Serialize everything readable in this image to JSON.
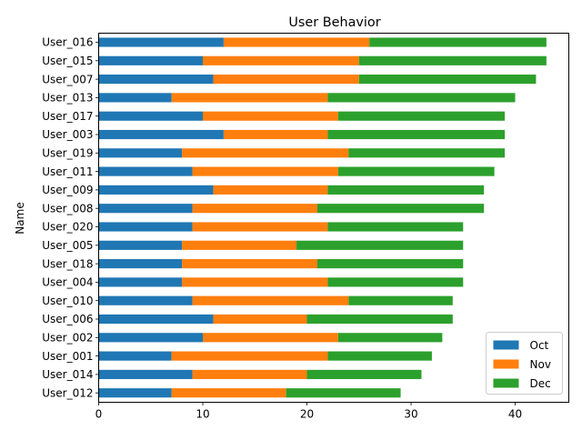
{
  "chart_data": {
    "type": "bar",
    "orientation": "horizontal",
    "stacked": true,
    "title": "User Behavior",
    "xlabel": "",
    "ylabel": "Name",
    "xlim": [
      0,
      45.15
    ],
    "xticks": [
      0,
      10,
      20,
      30,
      40
    ],
    "grid": false,
    "legend_position": "lower right",
    "categories": [
      "User_016",
      "User_015",
      "User_007",
      "User_013",
      "User_017",
      "User_003",
      "User_019",
      "User_011",
      "User_009",
      "User_008",
      "User_020",
      "User_005",
      "User_018",
      "User_004",
      "User_010",
      "User_006",
      "User_002",
      "User_001",
      "User_014",
      "User_012"
    ],
    "series": [
      {
        "name": "Oct",
        "color": "#1f77b4",
        "values": [
          12,
          10,
          11,
          7,
          10,
          12,
          8,
          9,
          11,
          9,
          9,
          8,
          8,
          8,
          9,
          11,
          10,
          7,
          9,
          7
        ]
      },
      {
        "name": "Nov",
        "color": "#ff7f0e",
        "values": [
          14,
          15,
          14,
          15,
          13,
          10,
          16,
          14,
          11,
          12,
          13,
          11,
          13,
          14,
          15,
          9,
          13,
          15,
          11,
          11
        ]
      },
      {
        "name": "Dec",
        "color": "#2ca02c",
        "values": [
          17,
          18,
          17,
          18,
          16,
          17,
          15,
          15,
          15,
          16,
          13,
          16,
          14,
          13,
          10,
          14,
          10,
          10,
          11,
          11
        ]
      }
    ]
  }
}
